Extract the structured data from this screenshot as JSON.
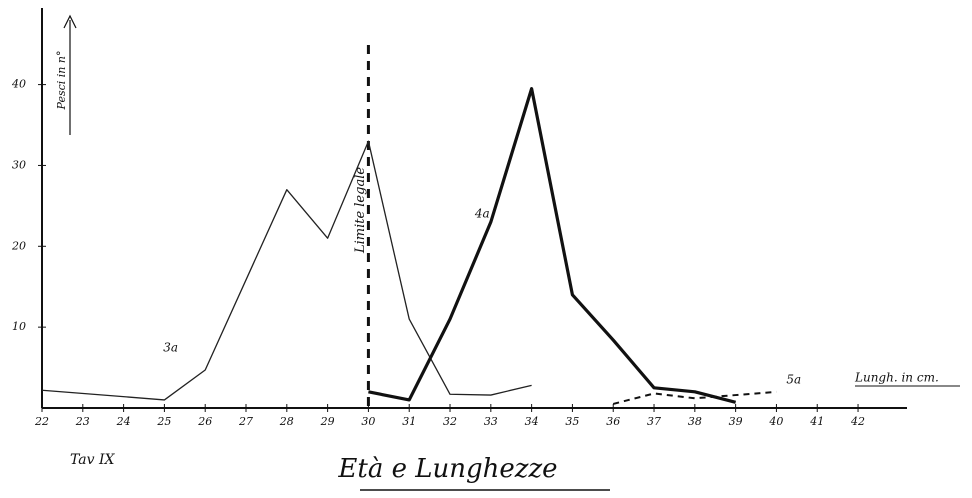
{
  "chart_data": {
    "type": "line",
    "title": "Età e Lunghezze",
    "note": "Tav IX",
    "x_label": "Lungh. in cm.",
    "y_label": "Pesci in n°",
    "limit_line": {
      "x": 30,
      "label": "Limite legale"
    },
    "xlim": [
      22,
      43.2
    ],
    "ylim": [
      0,
      47
    ],
    "xticks": [
      22,
      23,
      24,
      25,
      26,
      27,
      28,
      29,
      30,
      31,
      32,
      33,
      34,
      35,
      36,
      37,
      38,
      39,
      40,
      41,
      42
    ],
    "yticks": [
      10,
      20,
      30,
      40
    ],
    "series": [
      {
        "name": "3a",
        "color": "#222",
        "width": 1.3,
        "dash": "",
        "x": [
          22,
          25,
          26,
          28,
          29,
          30,
          31,
          32,
          33,
          34
        ],
        "values": [
          2.2,
          1,
          4.7,
          27,
          21,
          33,
          11,
          1.7,
          1.6,
          2.8
        ]
      },
      {
        "name": "4a",
        "color": "#111",
        "width": 3.2,
        "dash": "",
        "x": [
          30,
          31,
          32,
          33,
          34,
          35,
          36,
          37,
          38,
          39
        ],
        "values": [
          2,
          1,
          11,
          23,
          39.5,
          14,
          8.4,
          2.5,
          2,
          0.7
        ]
      },
      {
        "name": "5a",
        "color": "#111",
        "width": 2,
        "dash": "6 5",
        "x": [
          36,
          37,
          38,
          39,
          40
        ],
        "values": [
          0.5,
          1.8,
          1.2,
          1.6,
          2
        ]
      }
    ]
  }
}
